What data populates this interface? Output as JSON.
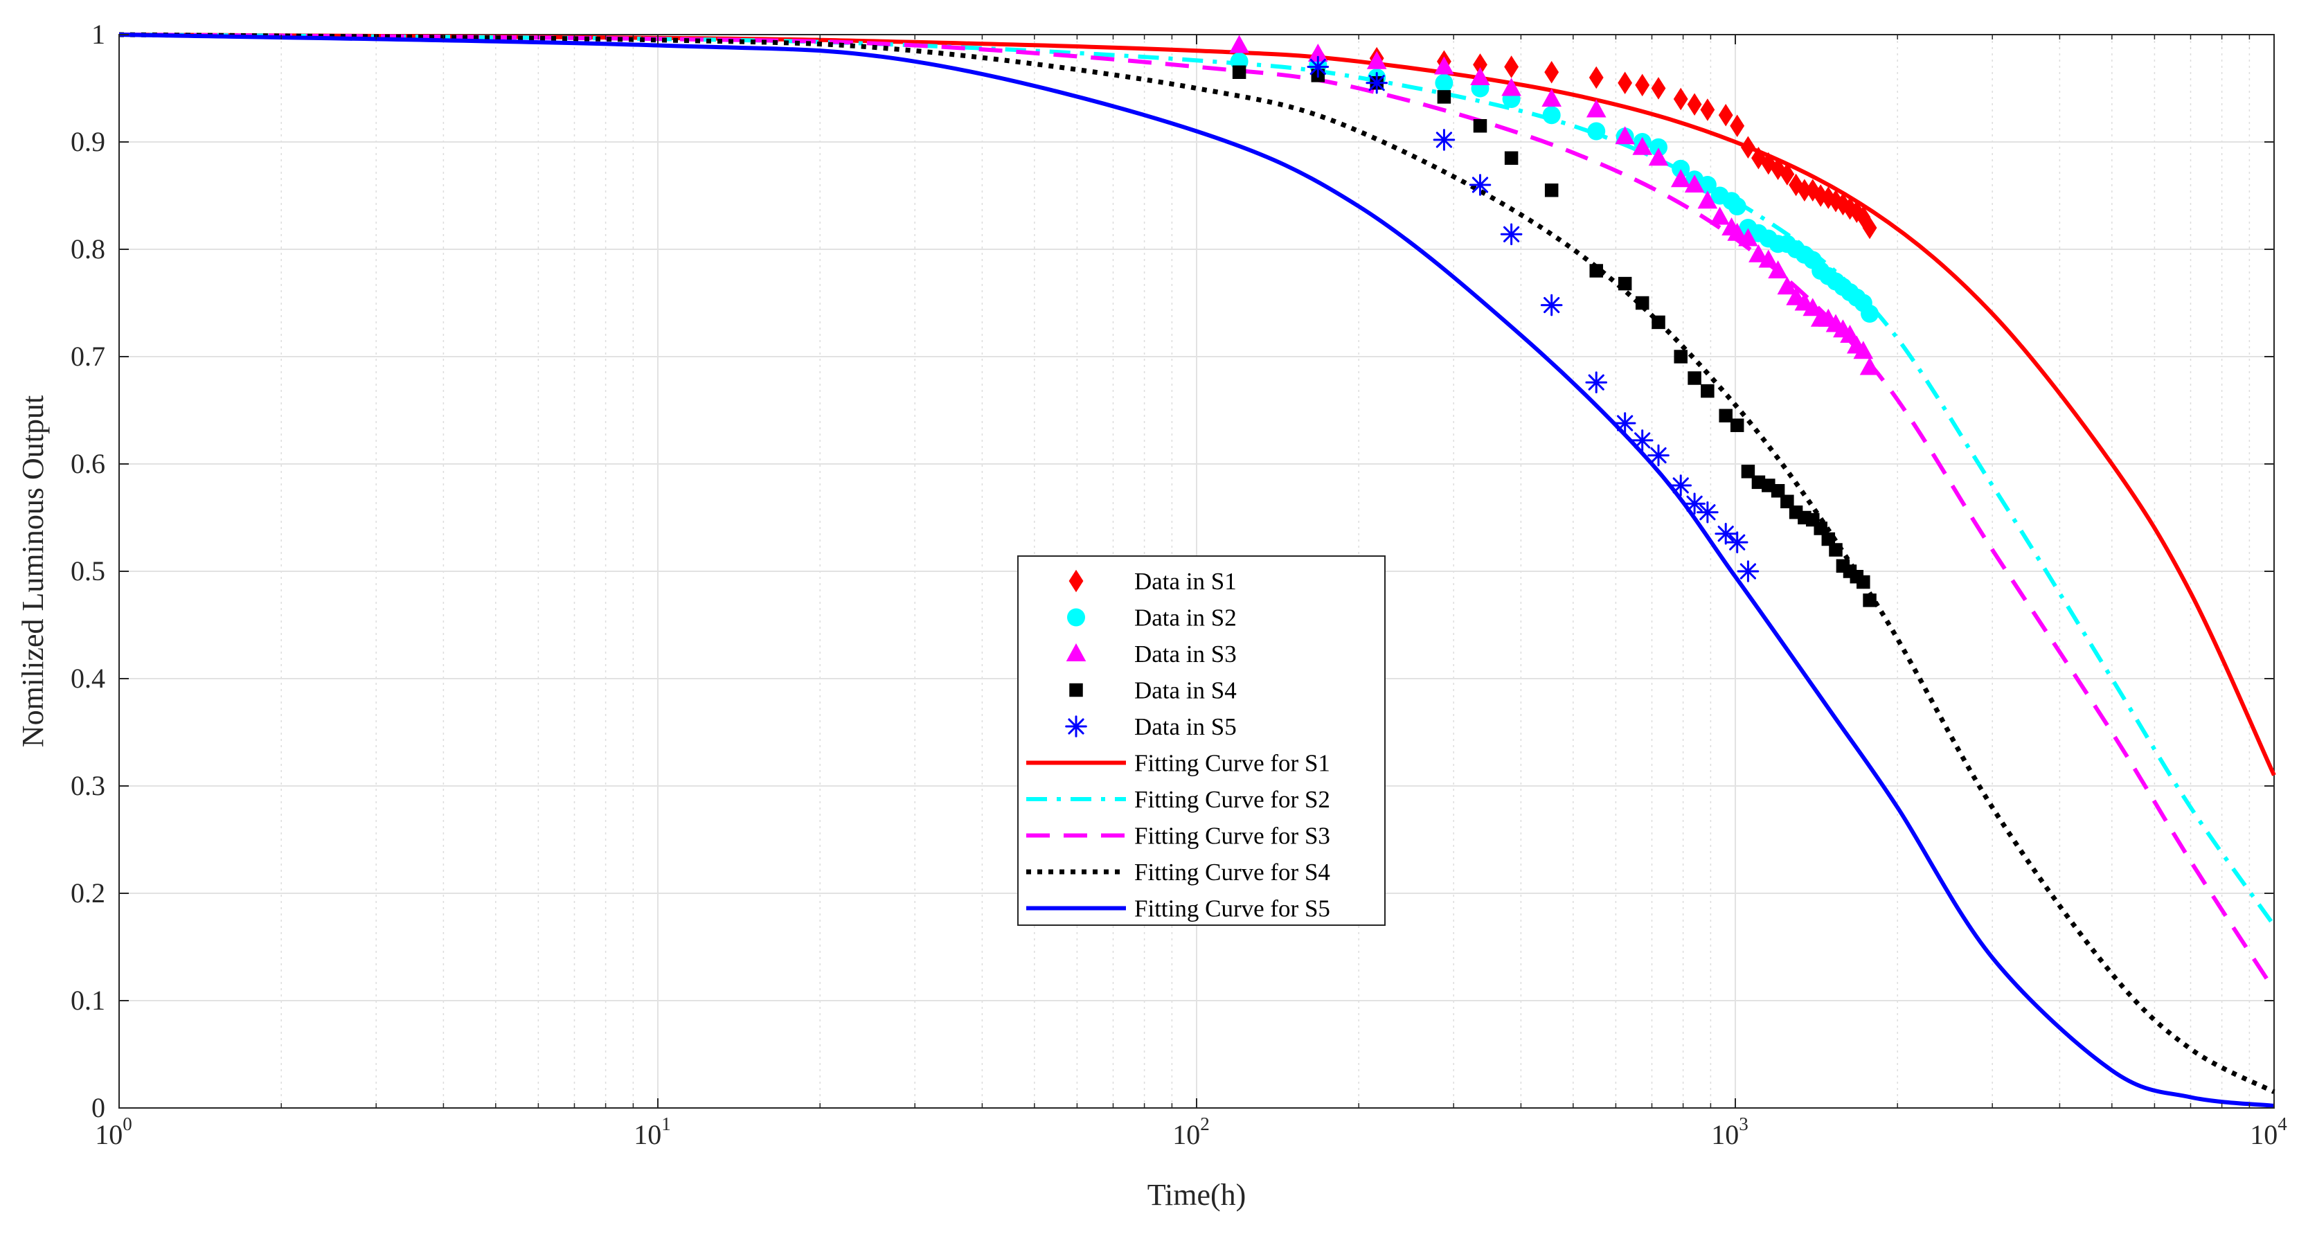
{
  "chart_data": {
    "type": "scatter",
    "title": "",
    "xlabel": "Time(h)",
    "ylabel": "Nomilized Luminous Output",
    "xscale": "log",
    "xlim": [
      1,
      10000
    ],
    "ylim": [
      0,
      1
    ],
    "grid": true,
    "minor_grid": true,
    "legend_position": "center",
    "x_ticks": [
      {
        "value": 1,
        "base": "10",
        "exp": "0"
      },
      {
        "value": 10,
        "base": "10",
        "exp": "1"
      },
      {
        "value": 100,
        "base": "10",
        "exp": "2"
      },
      {
        "value": 1000,
        "base": "10",
        "exp": "3"
      },
      {
        "value": 10000,
        "base": "10",
        "exp": "4"
      }
    ],
    "y_ticks": [
      {
        "value": 0,
        "label": "0"
      },
      {
        "value": 0.1,
        "label": "0.1"
      },
      {
        "value": 0.2,
        "label": "0.2"
      },
      {
        "value": 0.3,
        "label": "0.3"
      },
      {
        "value": 0.4,
        "label": "0.4"
      },
      {
        "value": 0.5,
        "label": "0.5"
      },
      {
        "value": 0.6,
        "label": "0.6"
      },
      {
        "value": 0.7,
        "label": "0.7"
      },
      {
        "value": 0.8,
        "label": "0.8"
      },
      {
        "value": 0.9,
        "label": "0.9"
      },
      {
        "value": 1,
        "label": "1"
      }
    ],
    "series": [
      {
        "name": "Data in S1",
        "kind": "marker",
        "marker": "diamond",
        "color": "#ff0000",
        "x": [
          120,
          168,
          216,
          288,
          336,
          384,
          456,
          552,
          624,
          672,
          720,
          792,
          840,
          888,
          960,
          1008,
          1056,
          1104,
          1152,
          1200,
          1248,
          1296,
          1344,
          1392,
          1440,
          1488,
          1536,
          1584,
          1632,
          1680,
          1728,
          1776
        ],
        "y": [
          0.985,
          0.98,
          0.978,
          0.975,
          0.972,
          0.97,
          0.965,
          0.96,
          0.955,
          0.953,
          0.95,
          0.94,
          0.935,
          0.93,
          0.925,
          0.915,
          0.895,
          0.885,
          0.88,
          0.875,
          0.87,
          0.86,
          0.855,
          0.855,
          0.85,
          0.848,
          0.845,
          0.842,
          0.838,
          0.835,
          0.83,
          0.82
        ]
      },
      {
        "name": "Data in S2",
        "kind": "marker",
        "marker": "circle",
        "color": "#00ffff",
        "x": [
          120,
          168,
          216,
          288,
          336,
          384,
          456,
          552,
          624,
          672,
          720,
          792,
          840,
          888,
          936,
          984,
          1008,
          1056,
          1104,
          1152,
          1200,
          1248,
          1296,
          1344,
          1392,
          1440,
          1488,
          1536,
          1584,
          1632,
          1680,
          1728,
          1776
        ],
        "y": [
          0.975,
          0.972,
          0.96,
          0.955,
          0.95,
          0.94,
          0.925,
          0.91,
          0.905,
          0.9,
          0.895,
          0.875,
          0.865,
          0.86,
          0.85,
          0.845,
          0.84,
          0.82,
          0.815,
          0.81,
          0.805,
          0.805,
          0.8,
          0.795,
          0.79,
          0.78,
          0.775,
          0.77,
          0.765,
          0.76,
          0.755,
          0.75,
          0.74
        ]
      },
      {
        "name": "Data in S3",
        "kind": "marker",
        "marker": "triangle",
        "color": "#ff00ff",
        "x": [
          120,
          168,
          216,
          288,
          336,
          384,
          456,
          552,
          624,
          672,
          720,
          792,
          840,
          888,
          936,
          984,
          1008,
          1056,
          1104,
          1152,
          1200,
          1248,
          1296,
          1344,
          1392,
          1440,
          1488,
          1536,
          1584,
          1632,
          1680,
          1728,
          1776
        ],
        "y": [
          0.99,
          0.982,
          0.975,
          0.97,
          0.96,
          0.95,
          0.94,
          0.93,
          0.905,
          0.895,
          0.885,
          0.865,
          0.86,
          0.845,
          0.83,
          0.82,
          0.815,
          0.81,
          0.795,
          0.79,
          0.78,
          0.765,
          0.755,
          0.75,
          0.745,
          0.735,
          0.735,
          0.73,
          0.725,
          0.72,
          0.71,
          0.705,
          0.69
        ]
      },
      {
        "name": "Data in S4",
        "kind": "marker",
        "marker": "square",
        "color": "#000000",
        "x": [
          120,
          168,
          216,
          288,
          336,
          384,
          456,
          552,
          624,
          672,
          720,
          792,
          840,
          888,
          960,
          1008,
          1056,
          1104,
          1152,
          1200,
          1248,
          1296,
          1344,
          1392,
          1440,
          1488,
          1536,
          1584,
          1632,
          1680,
          1728,
          1776
        ],
        "y": [
          0.965,
          0.962,
          0.955,
          0.942,
          0.915,
          0.885,
          0.855,
          0.78,
          0.768,
          0.75,
          0.732,
          0.7,
          0.68,
          0.668,
          0.645,
          0.636,
          0.593,
          0.583,
          0.58,
          0.575,
          0.565,
          0.555,
          0.55,
          0.548,
          0.54,
          0.53,
          0.52,
          0.505,
          0.5,
          0.495,
          0.49,
          0.473
        ]
      },
      {
        "name": "Data in S5",
        "kind": "marker",
        "marker": "asterisk",
        "color": "#0000ff",
        "x": [
          168,
          216,
          288,
          336,
          384,
          456,
          552,
          624,
          672,
          720,
          792,
          840,
          888,
          960,
          1008,
          1056
        ],
        "y": [
          0.97,
          0.955,
          0.902,
          0.86,
          0.814,
          0.748,
          0.676,
          0.638,
          0.622,
          0.608,
          0.58,
          0.563,
          0.555,
          0.535,
          0.527,
          0.5
        ]
      },
      {
        "name": "Fitting Curve for S1",
        "kind": "curve",
        "dash": "solid",
        "color": "#ff0000",
        "x": [
          1,
          10,
          30,
          100,
          200,
          500,
          1000,
          1800,
          3000,
          5000,
          7000,
          10000
        ],
        "y": [
          1,
          0.997,
          0.993,
          0.985,
          0.975,
          0.944,
          0.9,
          0.835,
          0.74,
          0.6,
          0.48,
          0.31
        ]
      },
      {
        "name": "Fitting Curve for S2",
        "kind": "curve",
        "dash": "dashdot",
        "color": "#00ffff",
        "x": [
          1,
          10,
          30,
          100,
          200,
          500,
          1000,
          1800,
          3000,
          5000,
          7000,
          10000
        ],
        "y": [
          1,
          0.996,
          0.99,
          0.976,
          0.96,
          0.915,
          0.845,
          0.745,
          0.58,
          0.4,
          0.28,
          0.17
        ]
      },
      {
        "name": "Fitting Curve for S3",
        "kind": "curve",
        "dash": "dashed",
        "color": "#ff00ff",
        "x": [
          1,
          10,
          30,
          100,
          200,
          500,
          1000,
          1800,
          3000,
          5000,
          7000,
          10000
        ],
        "y": [
          1,
          0.996,
          0.99,
          0.97,
          0.95,
          0.89,
          0.81,
          0.69,
          0.52,
          0.35,
          0.23,
          0.11
        ]
      },
      {
        "name": "Fitting Curve for S4",
        "kind": "curve",
        "dash": "dotted",
        "color": "#000000",
        "x": [
          1,
          10,
          30,
          100,
          200,
          500,
          1000,
          1800,
          3000,
          5000,
          7000,
          10000
        ],
        "y": [
          1,
          0.995,
          0.985,
          0.95,
          0.91,
          0.8,
          0.655,
          0.475,
          0.28,
          0.125,
          0.055,
          0.015
        ]
      },
      {
        "name": "Fitting Curve for S5",
        "kind": "curve",
        "dash": "solid",
        "color": "#0000ff",
        "x": [
          1,
          10,
          30,
          100,
          200,
          400,
          700,
          1000,
          1500,
          2000,
          3000,
          5000,
          7000,
          10000
        ],
        "y": [
          1,
          0.99,
          0.975,
          0.91,
          0.84,
          0.72,
          0.6,
          0.495,
          0.37,
          0.28,
          0.14,
          0.035,
          0.01,
          0.002
        ]
      }
    ]
  }
}
